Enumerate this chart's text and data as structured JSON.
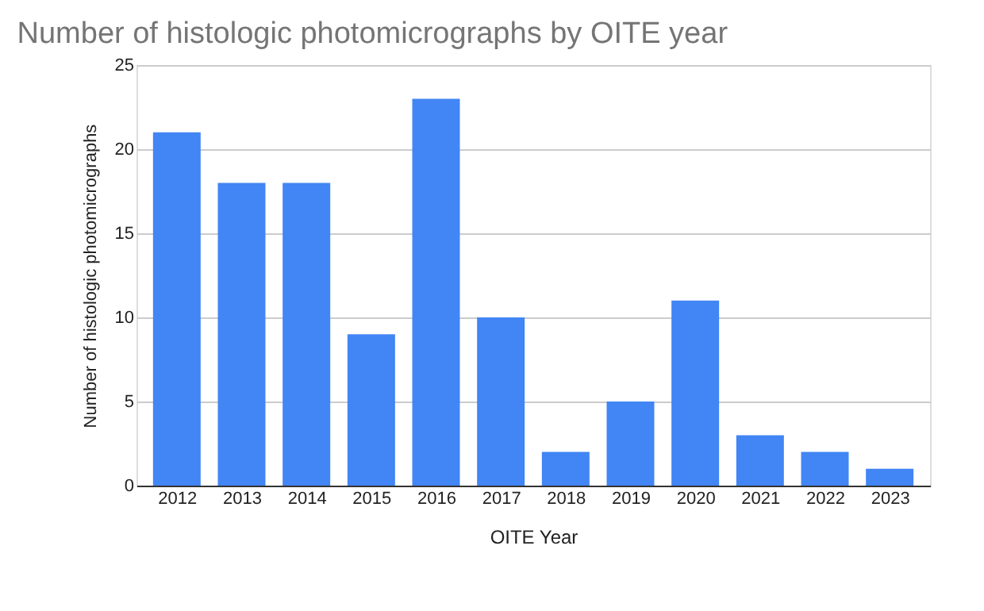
{
  "chart_data": {
    "type": "bar",
    "title": "Number of histologic photomicrographs by OITE year",
    "xlabel": "OITE Year",
    "ylabel": "Number of histologic photomicrographs",
    "categories": [
      "2012",
      "2013",
      "2014",
      "2015",
      "2016",
      "2017",
      "2018",
      "2019",
      "2020",
      "2021",
      "2022",
      "2023"
    ],
    "values": [
      21,
      18,
      18,
      9,
      23,
      10,
      2,
      5,
      11,
      3,
      2,
      1
    ],
    "color": "#4285f4",
    "ylim": [
      0,
      25
    ],
    "yticks": [
      0,
      5,
      10,
      15,
      20,
      25
    ],
    "grid": "y"
  }
}
